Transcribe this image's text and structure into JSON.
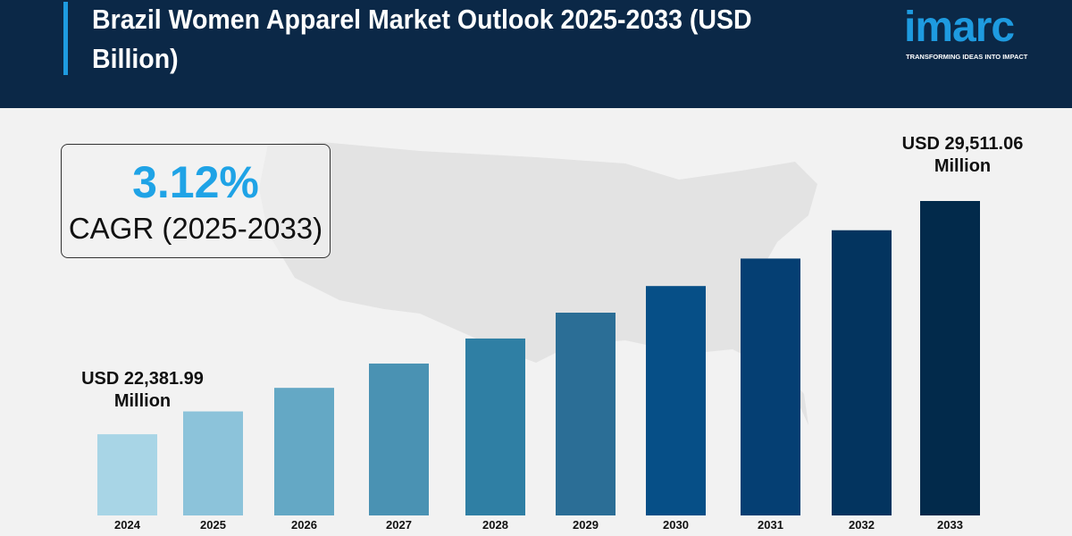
{
  "header": {
    "title": "Brazil Women Apparel Market Outlook 2025-2033 (USD Billion)",
    "logo_word": "imarc",
    "logo_tagline": "TRANSFORMING IDEAS INTO IMPACT"
  },
  "cagr": {
    "value": "3.12%",
    "label": "CAGR (2025-2033)"
  },
  "annotations": {
    "start": {
      "line1": "USD 22,381.99",
      "line2": "Million"
    },
    "end": {
      "line1": "USD 29,511.06",
      "line2": "Million"
    }
  },
  "colors": {
    "header_bg": "#0b2847",
    "accent": "#1e9be0",
    "bars": [
      "#a8d5e6",
      "#8cc3da",
      "#64a8c5",
      "#4a92b3",
      "#2f7fa4",
      "#2b6e96",
      "#064f87",
      "#053f73",
      "#03345f",
      "#022a4b"
    ]
  },
  "chart_data": {
    "type": "bar",
    "title": "Brazil Women Apparel Market Outlook 2025-2033 (USD Billion)",
    "categories": [
      "2024",
      "2025",
      "2026",
      "2027",
      "2028",
      "2029",
      "2030",
      "2031",
      "2032",
      "2033"
    ],
    "values": [
      22381.99,
      23080,
      23800,
      24543,
      25308,
      26098,
      26912,
      27752,
      28617,
      29511.06
    ],
    "unit": "USD Million",
    "ylim": [
      19900,
      29900
    ],
    "xlabel": "",
    "ylabel": "",
    "grid": false,
    "legend": "none"
  }
}
